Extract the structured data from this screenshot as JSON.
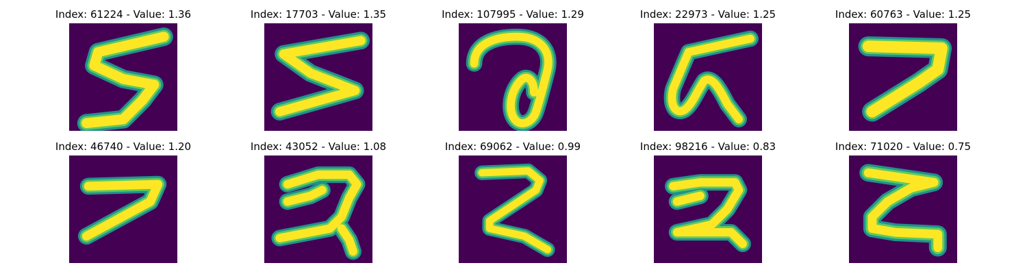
{
  "colors": {
    "background": "#440154",
    "stroke_edge": "#21918c",
    "stroke_mid": "#5ec962",
    "stroke_core": "#fde725"
  },
  "panels": [
    {
      "label": "Index: 61224 - Value: 1.36",
      "glyph": "5"
    },
    {
      "label": "Index: 17703 - Value: 1.35",
      "glyph": "5"
    },
    {
      "label": "Index: 107995 - Value: 1.29",
      "glyph": "a-loop"
    },
    {
      "label": "Index: 22973 - Value: 1.25",
      "glyph": "script"
    },
    {
      "label": "Index: 60763 - Value: 1.25",
      "glyph": "7-bold"
    },
    {
      "label": "Index: 46740 - Value: 1.20",
      "glyph": "7"
    },
    {
      "label": "Index: 43052 - Value: 1.08",
      "glyph": "2-alt"
    },
    {
      "label": "Index: 69062 - Value: 0.99",
      "glyph": "2"
    },
    {
      "label": "Index: 98216 - Value: 0.83",
      "glyph": "2-alt"
    },
    {
      "label": "Index: 71020 - Value: 0.75",
      "glyph": "2-z"
    }
  ]
}
